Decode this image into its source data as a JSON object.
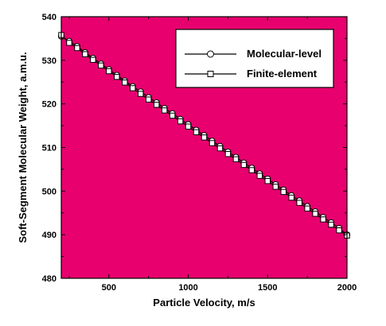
{
  "chart_data": {
    "type": "line",
    "title": "",
    "xlabel": "Particle Velocity, m/s",
    "ylabel": "Soft-Segment Molecular Weight, a.m.u.",
    "xlim": [
      200,
      2000
    ],
    "ylim": [
      480,
      540
    ],
    "xticks": [
      500,
      1000,
      1500,
      2000
    ],
    "yticks": [
      480,
      490,
      500,
      510,
      520,
      530,
      540
    ],
    "plot_background": "#E8006E",
    "grid": false,
    "legend_position": "top-right",
    "series": [
      {
        "name": "Molecular-level",
        "marker": "circle",
        "x": [
          200,
          250,
          300,
          350,
          400,
          450,
          500,
          550,
          600,
          650,
          700,
          750,
          800,
          850,
          900,
          950,
          1000,
          1050,
          1100,
          1150,
          1200,
          1250,
          1300,
          1350,
          1400,
          1450,
          1500,
          1550,
          1600,
          1650,
          1700,
          1750,
          1800,
          1850,
          1900,
          1950,
          2000
        ],
        "y": [
          535.5,
          534.4,
          533.2,
          531.8,
          530.5,
          529.2,
          527.9,
          526.6,
          525.3,
          524.0,
          522.8,
          521.5,
          520.3,
          519.0,
          517.8,
          516.5,
          515.3,
          514.0,
          512.8,
          511.5,
          510.3,
          509.0,
          507.8,
          506.5,
          505.3,
          504.0,
          502.8,
          501.5,
          500.3,
          499.0,
          497.8,
          496.5,
          495.3,
          494.0,
          492.8,
          491.5,
          490.0
        ]
      },
      {
        "name": "Finite-element",
        "marker": "square",
        "x": [
          200,
          250,
          300,
          350,
          400,
          450,
          500,
          550,
          600,
          650,
          700,
          750,
          800,
          850,
          900,
          950,
          1000,
          1050,
          1100,
          1150,
          1200,
          1250,
          1300,
          1350,
          1400,
          1450,
          1500,
          1550,
          1600,
          1650,
          1700,
          1750,
          1800,
          1850,
          1900,
          1950,
          2000
        ],
        "y": [
          535.8,
          534.0,
          532.8,
          531.4,
          530.1,
          528.8,
          527.5,
          526.2,
          524.9,
          523.6,
          522.3,
          521.0,
          519.8,
          518.5,
          517.3,
          516.0,
          514.8,
          513.5,
          512.3,
          511.0,
          509.8,
          508.5,
          507.3,
          506.0,
          504.8,
          503.5,
          502.3,
          501.0,
          499.8,
          498.5,
          497.3,
          496.0,
          494.8,
          493.5,
          492.3,
          491.0,
          489.8
        ]
      }
    ]
  }
}
